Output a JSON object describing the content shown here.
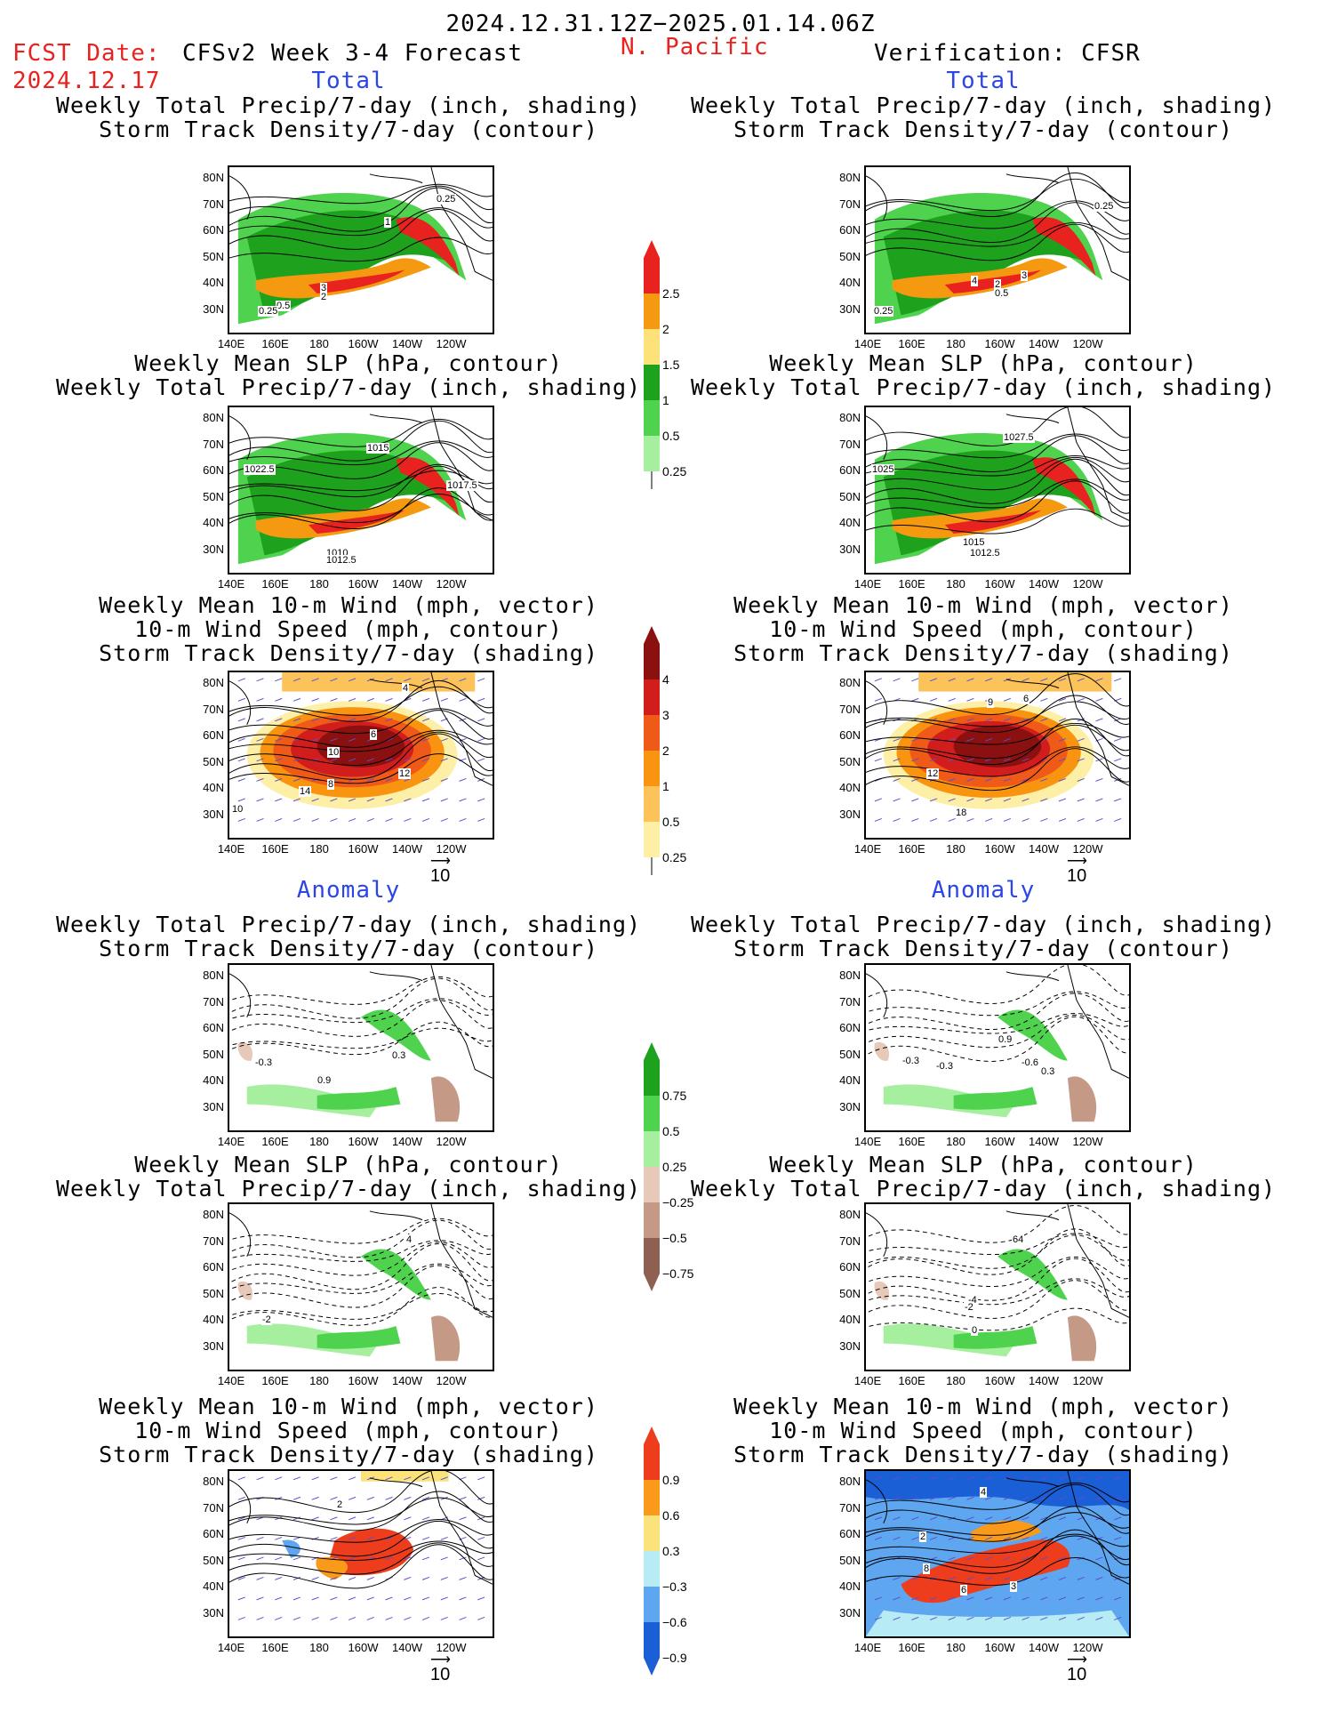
{
  "header": {
    "period": "2024.12.31.12Z−2025.01.14.06Z",
    "fcst_label": "FCST Date:",
    "fcst_date": "2024.12.17",
    "forecast_title": "CFSv2 Week 3-4 Forecast",
    "region": "N. Pacific",
    "verification_title": "Verification: CFSR"
  },
  "sections": {
    "total": "Total",
    "anomaly": "Anomaly"
  },
  "panel_titles": {
    "precip_storm": [
      "Weekly Total Precip/7-day (inch, shading)",
      "Storm Track Density/7-day (contour)"
    ],
    "slp_precip": [
      "Weekly Mean SLP (hPa, contour)",
      "Weekly Total Precip/7-day (inch, shading)"
    ],
    "wind_storm": [
      "Weekly Mean 10-m Wind (mph, vector)",
      "10-m Wind Speed (mph, contour)",
      "Storm Track Density/7-day (shading)"
    ]
  },
  "axes": {
    "lat": [
      "80N",
      "70N",
      "60N",
      "50N",
      "40N",
      "30N"
    ],
    "lon": [
      "140E",
      "160E",
      "180",
      "160W",
      "140W",
      "120W"
    ]
  },
  "vector_ref": "10",
  "colorbars": {
    "precip_total": {
      "labels": [
        "2.5",
        "2",
        "1.5",
        "1",
        "0.5",
        "0.25"
      ],
      "colors": [
        "#e8231f",
        "#f59a10",
        "#fde27a",
        "#1ea21e",
        "#4fd34f",
        "#a6ef9e"
      ]
    },
    "storm_total": {
      "labels": [
        "4",
        "3",
        "2",
        "1",
        "0.5",
        "0.25"
      ],
      "colors": [
        "#8b1010",
        "#d21d1d",
        "#f05a18",
        "#f99410",
        "#fbc35a",
        "#fdf0a6"
      ]
    },
    "precip_anom": {
      "labels": [
        "0.75",
        "0.5",
        "0.25",
        "−0.25",
        "−0.5",
        "−0.75"
      ],
      "colors": [
        "#1ea21e",
        "#4fd34f",
        "#a6ef9e",
        "#e6c9b8",
        "#c49a86",
        "#8e6052"
      ]
    },
    "storm_anom": {
      "labels": [
        "0.9",
        "0.6",
        "0.3",
        "−0.3",
        "−0.6",
        "−0.9"
      ],
      "colors": [
        "#ee3d1c",
        "#f99a1a",
        "#fbe27a",
        "#b7ecf5",
        "#5ea6ef",
        "#1b5fd6"
      ]
    }
  },
  "contour_labels": {
    "r1_left": [
      "1",
      "3",
      "2",
      "0.5",
      "0.25",
      "0.25"
    ],
    "r1_right": [
      "0.25",
      "4",
      "2",
      "3",
      "0.5",
      "0.25"
    ],
    "r2_left": [
      "1015",
      "1022.5",
      "1017.5",
      "1010",
      "1012.5"
    ],
    "r2_right": [
      "1027.5",
      "1025",
      "1015",
      "1012.5"
    ],
    "r3_left": [
      "4",
      "6",
      "10",
      "12",
      "14",
      "8",
      "10"
    ],
    "r3_right": [
      "9",
      "6",
      "12",
      "18"
    ],
    "r4_left": [
      "-0.3",
      "0.3",
      "0.9"
    ],
    "r4_right": [
      "0.9",
      "-0.3",
      "-0.3",
      "-0.6",
      "0.3"
    ],
    "r5_left": [
      "4",
      "-2"
    ],
    "r5_right": [
      "64",
      "-4",
      "-2",
      "0"
    ],
    "r6_left": [
      "2"
    ],
    "r6_right": [
      "4",
      "2",
      "8",
      "6",
      "3"
    ]
  }
}
